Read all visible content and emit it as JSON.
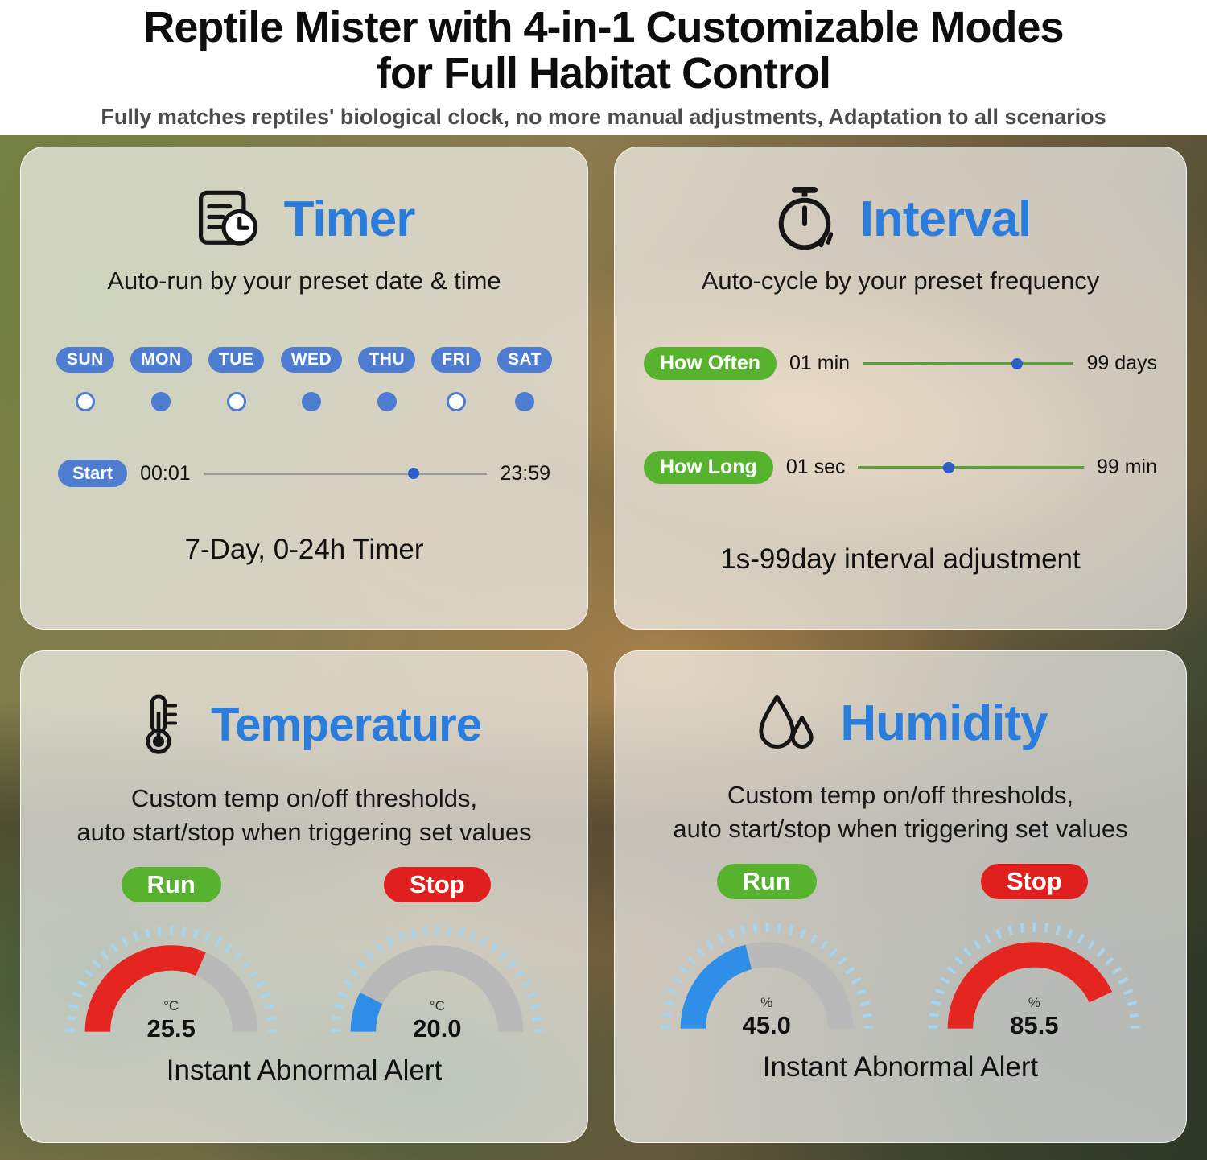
{
  "page": {
    "title_line1": "Reptile Mister with 4-in-1 Customizable Modes",
    "title_line2": "for Full Habitat Control",
    "subtitle": "Fully matches reptiles' biological clock, no more manual adjustments, Adaptation to all scenarios"
  },
  "timer": {
    "heading": "Timer",
    "description": "Auto-run by your preset date & time",
    "days": [
      {
        "label": "SUN",
        "selected": false
      },
      {
        "label": "MON",
        "selected": true
      },
      {
        "label": "TUE",
        "selected": false
      },
      {
        "label": "WED",
        "selected": true
      },
      {
        "label": "THU",
        "selected": true
      },
      {
        "label": "FRI",
        "selected": false
      },
      {
        "label": "SAT",
        "selected": true
      }
    ],
    "start_label": "Start",
    "range_min": "00:01",
    "range_max": "23:59",
    "slider_pos": 0.74,
    "footer": "7-Day, 0-24h Timer"
  },
  "interval": {
    "heading": "Interval",
    "description": "Auto-cycle by your preset frequency",
    "rows": [
      {
        "label": "How Often",
        "min": "01 min",
        "max": "99 days",
        "pos": 0.73
      },
      {
        "label": "How Long",
        "min": "01 sec",
        "max": "99 min",
        "pos": 0.4
      }
    ],
    "footer": "1s-99day interval adjustment"
  },
  "temperature": {
    "heading": "Temperature",
    "desc1": "Custom temp on/off thresholds,",
    "desc2": "auto start/stop when triggering set values",
    "gauges": [
      {
        "state": "Run",
        "unit": "°C",
        "value": "25.5",
        "fill": 0.63,
        "color": "#e52620"
      },
      {
        "state": "Stop",
        "unit": "°C",
        "value": "20.0",
        "fill": 0.15,
        "color": "#2f8fe8"
      }
    ],
    "footer": "Instant Abnormal Alert"
  },
  "humidity": {
    "heading": "Humidity",
    "desc1": "Custom temp on/off thresholds,",
    "desc2": "auto start/stop when triggering set values",
    "gauges": [
      {
        "state": "Run",
        "unit": "%",
        "value": "45.0",
        "fill": 0.42,
        "color": "#2f8fe8"
      },
      {
        "state": "Stop",
        "unit": "%",
        "value": "85.5",
        "fill": 0.86,
        "color": "#e52620"
      }
    ],
    "footer": "Instant Abnormal Alert"
  },
  "colors": {
    "accent_blue": "#2a7ddd",
    "pill_blue": "#4e7cd0",
    "green": "#57b32e",
    "red": "#e0201f",
    "gauge_gray": "#b9b9b9",
    "tick_blue": "#a6d5f2"
  }
}
